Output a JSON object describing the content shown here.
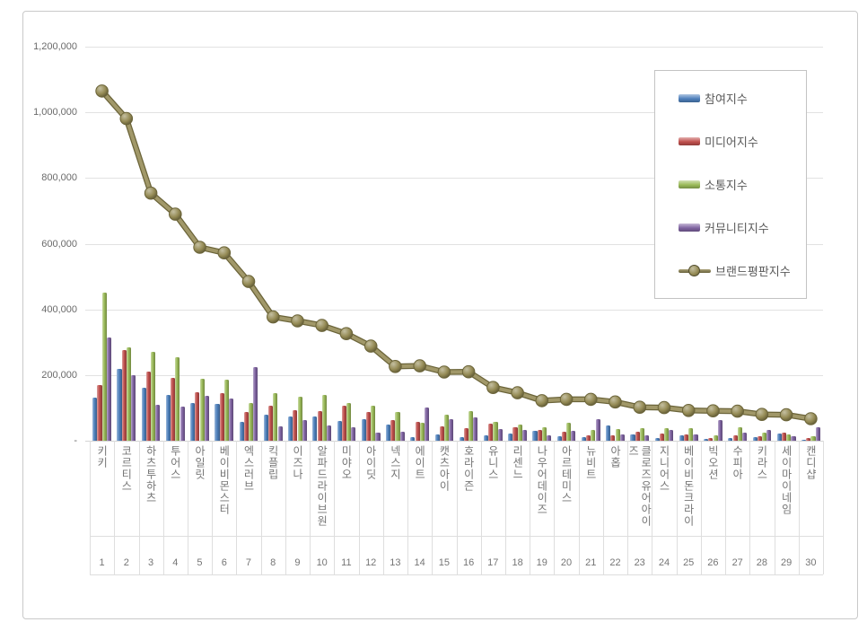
{
  "window": {
    "background": "#ffffff",
    "frame_border_color": "#c9c9c9"
  },
  "legend": {
    "position": "upper-right",
    "items": [
      {
        "label": "참여지수",
        "color": "#4F81BD",
        "swatch": "bar"
      },
      {
        "label": "미디어지수",
        "color": "#C0504D",
        "swatch": "bar"
      },
      {
        "label": "소통지수",
        "color": "#9BBB59",
        "swatch": "bar"
      },
      {
        "label": "커뮤니티지수",
        "color": "#8064A2",
        "swatch": "bar"
      },
      {
        "label": "브랜드평판지수",
        "color": "#948A54",
        "swatch": "line-marker"
      }
    ]
  },
  "y_axis": {
    "ticks": [
      {
        "label": "1,200,000",
        "value": 1200000
      },
      {
        "label": "1,000,000",
        "value": 1000000
      },
      {
        "label": "800,000",
        "value": 800000
      },
      {
        "label": "600,000",
        "value": 600000
      },
      {
        "label": "400,000",
        "value": 400000
      },
      {
        "label": "200,000",
        "value": 200000
      },
      {
        "label": "-",
        "value": 0
      }
    ]
  },
  "chart_data": {
    "type": "bar",
    "subtype": "grouped bars + overlay line",
    "title": "",
    "xlabel": "",
    "ylabel": "",
    "ylim": [
      0,
      1200000
    ],
    "y_tick_interval": 200000,
    "grid": true,
    "legend_position": "upper-right",
    "categories": [
      "키키",
      "코르티스",
      "하츠투하츠",
      "투어스",
      "아일릿",
      "베이비몬스터",
      "엑스러브",
      "킥플립",
      "이즈나",
      "알파드라이브원",
      "미야오",
      "아이딧",
      "넥스지",
      "에이트",
      "캣츠아이",
      "호라이즌",
      "유니스",
      "리센느",
      "나우어데이즈",
      "아르테미스",
      "뉴비트",
      "아홉",
      "클로즈유어아이즈",
      "지니어스",
      "베이비돈크라이",
      "빅오션",
      "수피아",
      "키라스",
      "세이마이네임",
      "캔디샵"
    ],
    "rank_labels": [
      "1",
      "2",
      "3",
      "4",
      "5",
      "6",
      "7",
      "8",
      "9",
      "10",
      "11",
      "12",
      "13",
      "14",
      "15",
      "16",
      "17",
      "18",
      "19",
      "20",
      "21",
      "22",
      "23",
      "24",
      "25",
      "26",
      "27",
      "28",
      "29",
      "30"
    ],
    "series": [
      {
        "name": "참여지수",
        "type": "bar",
        "color": "#4F81BD",
        "values": [
          130000,
          220000,
          162000,
          140000,
          115000,
          112000,
          58000,
          80000,
          74000,
          74000,
          60000,
          66000,
          48000,
          12000,
          20000,
          12000,
          16000,
          22000,
          30000,
          14000,
          11000,
          47000,
          19000,
          8000,
          16000,
          5000,
          8000,
          10000,
          21000,
          4000
        ]
      },
      {
        "name": "미디어지수",
        "type": "bar",
        "color": "#C0504D",
        "values": [
          170000,
          275000,
          211000,
          192000,
          148000,
          145000,
          88000,
          107000,
          93000,
          90000,
          108000,
          88000,
          62000,
          58000,
          44000,
          38000,
          52000,
          40000,
          34000,
          27000,
          16000,
          16000,
          28000,
          22000,
          20000,
          8000,
          16000,
          14000,
          24000,
          7000
        ]
      },
      {
        "name": "소통지수",
        "type": "bar",
        "color": "#9BBB59",
        "values": [
          450000,
          285000,
          271000,
          255000,
          188000,
          187000,
          116000,
          146000,
          135000,
          140000,
          116000,
          108000,
          88000,
          56000,
          79000,
          90000,
          58000,
          50000,
          42000,
          55000,
          33000,
          35000,
          38000,
          38000,
          38000,
          16000,
          40000,
          24000,
          19000,
          14000
        ]
      },
      {
        "name": "커뮤니티지수",
        "type": "bar",
        "color": "#8064A2",
        "values": [
          315000,
          201000,
          110000,
          103000,
          138000,
          128000,
          223000,
          44000,
          63000,
          47000,
          42000,
          26000,
          28000,
          102000,
          66000,
          70000,
          36000,
          34000,
          16000,
          30000,
          66000,
          20000,
          17000,
          33000,
          18000,
          62000,
          26000,
          32000,
          15000,
          42000
        ]
      },
      {
        "name": "브랜드평판지수",
        "type": "line",
        "color": "#948A54",
        "values": [
          1065000,
          981000,
          754000,
          690000,
          589000,
          572000,
          485000,
          377000,
          365000,
          351000,
          326000,
          288000,
          226000,
          228000,
          209000,
          210000,
          162000,
          146000,
          122000,
          126000,
          126000,
          118000,
          102000,
          101000,
          92000,
          91000,
          90000,
          80000,
          79000,
          67000
        ]
      }
    ]
  }
}
